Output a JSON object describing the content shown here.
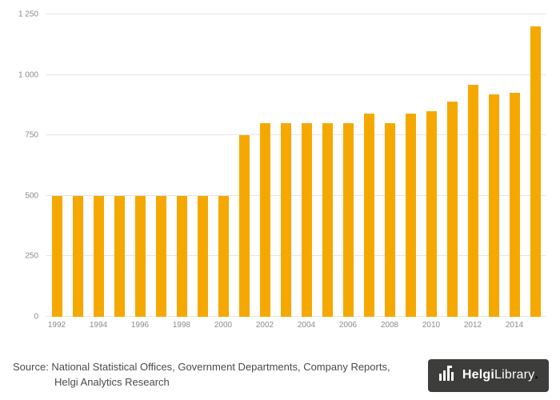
{
  "chart_data": {
    "type": "bar",
    "title": "",
    "xlabel": "",
    "ylabel": "",
    "categories": [
      1992,
      1993,
      1994,
      1995,
      1996,
      1997,
      1998,
      1999,
      2000,
      2001,
      2002,
      2003,
      2004,
      2005,
      2006,
      2007,
      2008,
      2009,
      2010,
      2011,
      2012,
      2013,
      2014,
      2015
    ],
    "values": [
      500,
      500,
      500,
      500,
      500,
      500,
      500,
      500,
      500,
      750,
      800,
      800,
      800,
      800,
      800,
      840,
      800,
      840,
      850,
      890,
      960,
      920,
      925,
      1200
    ],
    "tick_labels": [
      "1992",
      "",
      "1994",
      "",
      "1996",
      "",
      "1998",
      "",
      "2000",
      "",
      "2002",
      "",
      "2004",
      "",
      "2006",
      "",
      "2008",
      "",
      "2010",
      "",
      "2012",
      "",
      "2014",
      ""
    ],
    "ylim": [
      0,
      1250
    ],
    "yticks": [
      {
        "v": 0,
        "label": "0"
      },
      {
        "v": 250,
        "label": "250"
      },
      {
        "v": 500,
        "label": "500"
      },
      {
        "v": 750,
        "label": "750"
      },
      {
        "v": 1000,
        "label": "1 000"
      },
      {
        "v": 1250,
        "label": "1 250"
      }
    ],
    "grid": "horizontal",
    "legend": "none",
    "bar_color": "#F5A800"
  },
  "footer": {
    "source_line1": "Source: National Statistical Offices, Government Departments, Company Reports,",
    "source_line2": "Helgi Analytics Research",
    "logo": {
      "text_primary": "Helgi",
      "text_secondary": "Library",
      "dot": ".",
      "bg_color": "#3d3d3b",
      "accent_color": "#F5A800"
    }
  }
}
